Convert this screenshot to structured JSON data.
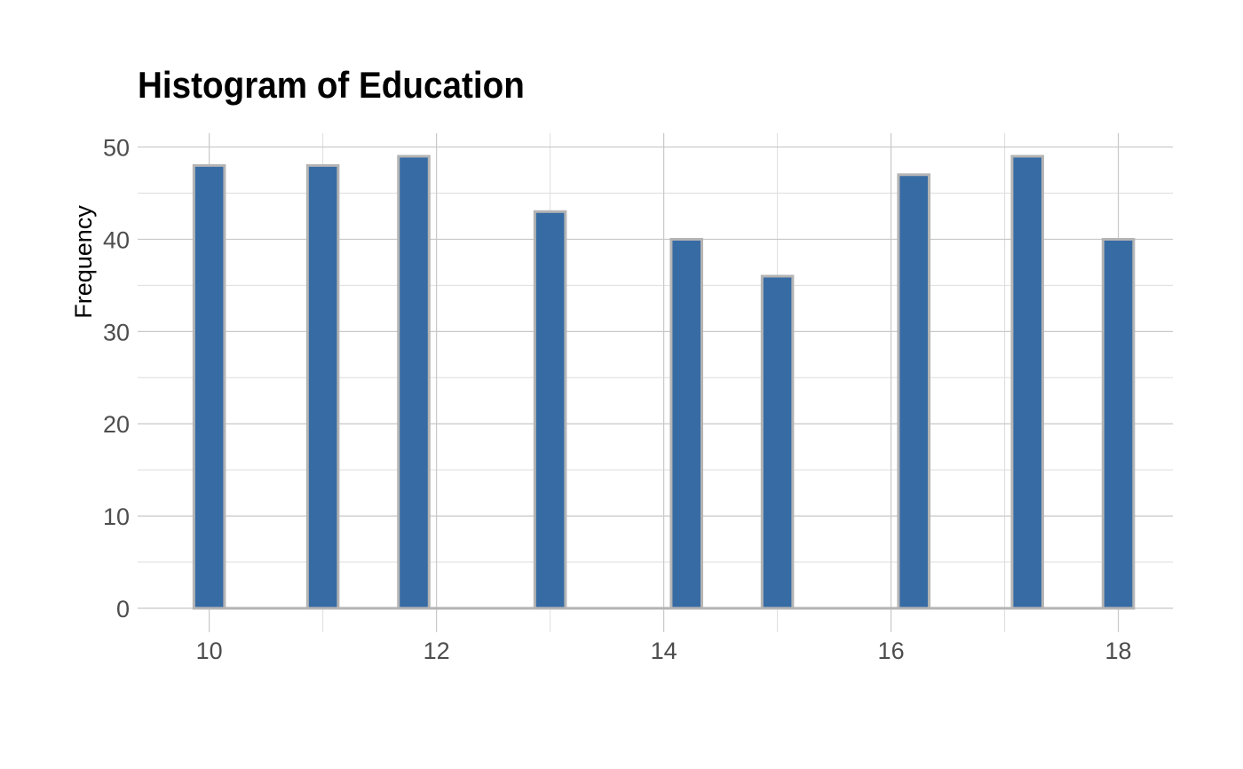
{
  "chart_data": {
    "type": "bar",
    "title": "Histogram of Education",
    "xlabel": "",
    "ylabel": "Frequency",
    "x": [
      10,
      11,
      11.8,
      13,
      14.2,
      15,
      16.2,
      17.2,
      18
    ],
    "values": [
      48,
      48,
      49,
      43,
      40,
      36,
      47,
      49,
      40
    ],
    "bar_width": 0.27,
    "xlim": [
      9.37,
      18.48
    ],
    "ylim": [
      -2.6,
      51.5
    ],
    "xticks": [
      10,
      12,
      14,
      16,
      18
    ],
    "yticks": [
      0,
      10,
      20,
      30,
      40,
      50
    ],
    "grid": true,
    "bar_fill": "#376ba4",
    "bar_outline": "#b4b4b4"
  }
}
